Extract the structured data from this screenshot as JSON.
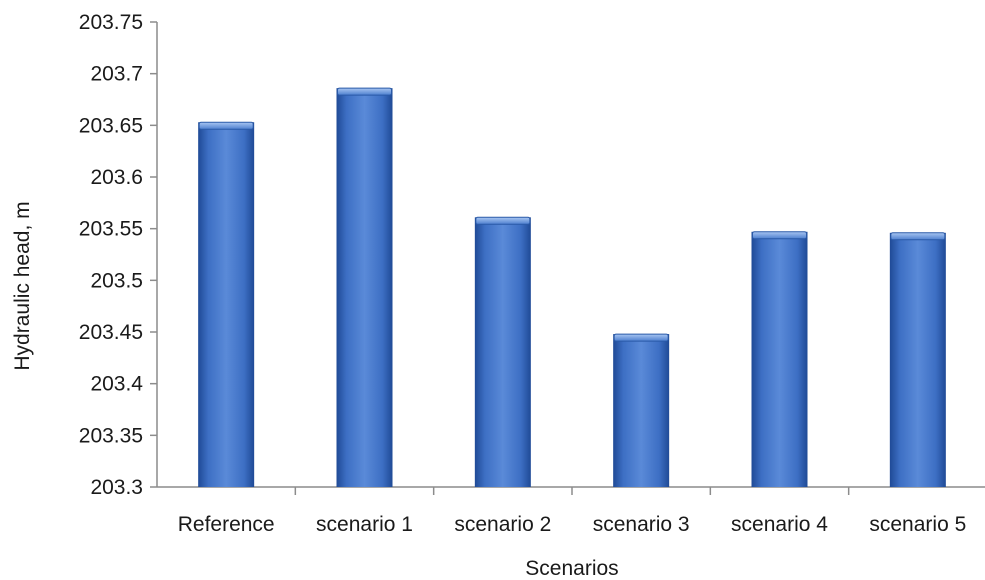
{
  "chart_data": {
    "type": "bar",
    "title": "",
    "xlabel": "Scenarios",
    "ylabel": "Hydraulic head, m",
    "categories": [
      "Reference",
      "scenario 1",
      "scenario 2",
      "scenario 3",
      "scenario 4",
      "scenario 5"
    ],
    "values": [
      203.653,
      203.686,
      203.561,
      203.448,
      203.547,
      203.546
    ],
    "ylim": [
      203.3,
      203.75
    ],
    "yticks": [
      "203.3",
      "203.35",
      "203.4",
      "203.45",
      "203.5",
      "203.55",
      "203.6",
      "203.65",
      "203.7",
      "203.75"
    ],
    "grid": false,
    "legend": "none",
    "colors": {
      "bar": "#3d6fc4",
      "bar_dark": "#1f4a96",
      "bar_light": "#6b97e0",
      "axis": "#8c8c8c"
    }
  }
}
